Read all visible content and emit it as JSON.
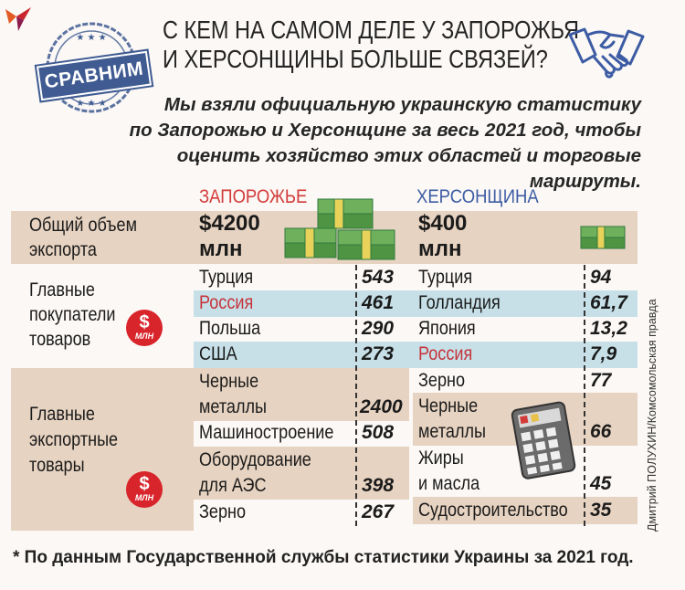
{
  "stamp": {
    "label": "СРАВНИМ"
  },
  "title": {
    "line1": "С КЕМ НА САМОМ ДЕЛЕ У ЗАПОРОЖЬЯ",
    "line2": "И ХЕРСОНЩИНЫ БОЛЬШЕ СВЯЗЕЙ?"
  },
  "subtitle": {
    "line1": "Мы взяли официальную украинскую статистику",
    "line2": "по Запорожью и Херсонщине за весь 2021 год, чтобы",
    "line3": "оценить хозяйство этих областей и торговые маршруты."
  },
  "columns": {
    "zap": "ЗАПОРОЖЬЕ",
    "kher": "ХЕРСОНЩИНА"
  },
  "export_total": {
    "label1": "Общий объем",
    "label2": "экспорта",
    "zap_value": "$4200",
    "zap_unit": "млн",
    "kher_value": "$400",
    "kher_unit": "млн"
  },
  "buyers": {
    "label1": "Главные",
    "label2": "покупатели",
    "label3": "товаров",
    "zap": [
      {
        "name": "Турция",
        "value": "543"
      },
      {
        "name": "Россия",
        "value": "461"
      },
      {
        "name": "Польша",
        "value": "290"
      },
      {
        "name": "США",
        "value": "273"
      }
    ],
    "kher": [
      {
        "name": "Турция",
        "value": "94"
      },
      {
        "name": "Голландия",
        "value": "61,7"
      },
      {
        "name": "Япония",
        "value": "13,2"
      },
      {
        "name": "Россия",
        "value": "7,9"
      }
    ]
  },
  "goods": {
    "label1": "Главные",
    "label2": "экспортные",
    "label3": "товары",
    "zap": [
      {
        "line1": "Черные",
        "line2": "металлы",
        "value": "2400"
      },
      {
        "line1": "Машиностроение",
        "value": "508"
      },
      {
        "line1": "Оборудование",
        "line2": "для АЭС",
        "value": "398"
      },
      {
        "line1": "Зерно",
        "value": "267"
      }
    ],
    "kher": [
      {
        "line1": "Зерно",
        "value": "77"
      },
      {
        "line1": "Черные",
        "line2": "металлы",
        "value": "66"
      },
      {
        "line1": "Жиры",
        "line2": "и масла",
        "value": "45"
      },
      {
        "line1": "Судостроительство",
        "value": "35"
      }
    ]
  },
  "badge": {
    "symbol": "$",
    "unit": "МЛН"
  },
  "credit": "Дмитрий ПОЛУХИН/Комсомольская правда",
  "footnote": "* По данным Государственной службы статистики Украины за 2021 год.",
  "colors": {
    "beige": "#e7d3c1",
    "light_blue": "#c7e0e8",
    "red": "#c5343a",
    "blue": "#3d5ca4",
    "stamp": "#3f5b92"
  }
}
